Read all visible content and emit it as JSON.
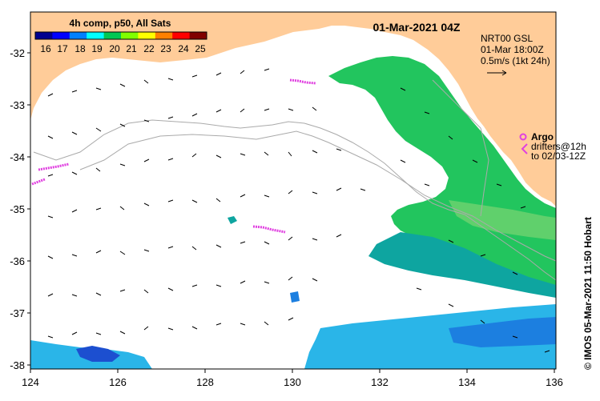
{
  "map": {
    "timestamp": "01-Mar-2021 04Z",
    "colorbar": {
      "title": "4h comp, p50, All Sats",
      "labels": [
        "16",
        "17",
        "18",
        "19",
        "20",
        "21",
        "22",
        "23",
        "24",
        "25"
      ],
      "colors": [
        "#00008f",
        "#0000ff",
        "#0080ff",
        "#00ffff",
        "#00c853",
        "#80ff00",
        "#ffff00",
        "#ff8000",
        "#ff0000",
        "#800000"
      ]
    },
    "current_legend": {
      "line1": "NRT00 GSL",
      "line2": "01-Mar 18:00Z",
      "line3": "0.5m/s (1kt 24h)"
    },
    "argo_legend": {
      "label": "Argo",
      "drifters_line1": "drifters@12h",
      "drifters_line2": "to 02/03-12Z"
    },
    "credit": "© IMOS 05-Mar-2021 11:50 Hobart",
    "y_axis_labels": [
      "-32",
      "-33",
      "-34",
      "-35",
      "-36",
      "-37",
      "-38"
    ],
    "x_axis_labels": [
      "124",
      "126",
      "128",
      "130",
      "132",
      "134",
      "136"
    ],
    "colors": {
      "land": "#ffcc99",
      "ocean": "#ffffff",
      "argo": "#e040e0",
      "bathymetry": "#aaaaaa"
    }
  }
}
